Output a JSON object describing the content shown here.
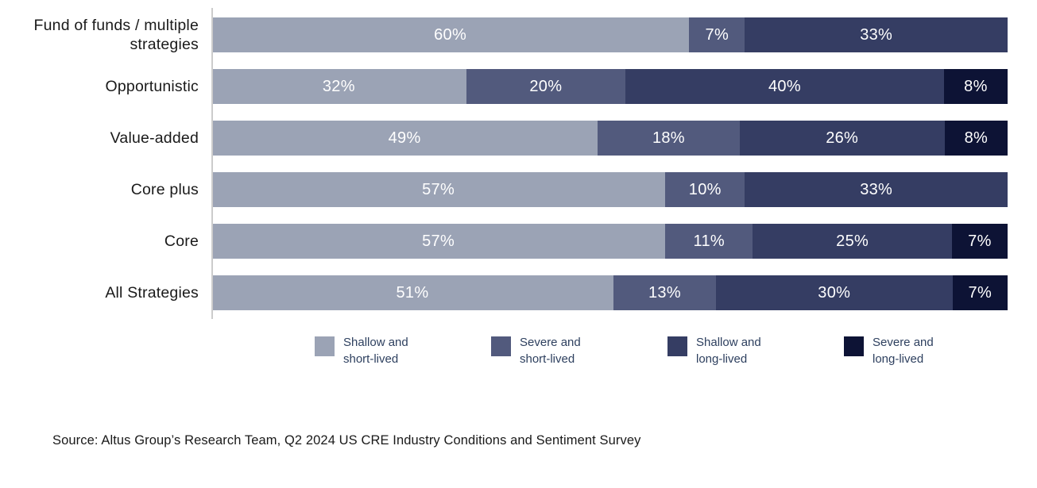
{
  "chart_data": {
    "type": "bar",
    "orientation": "horizontal",
    "stacked": true,
    "value_unit": "%",
    "xlim": [
      0,
      100
    ],
    "grid": false,
    "legend_position": "bottom",
    "categories": [
      "Fund of funds / multiple strategies",
      "Opportunistic",
      "Value-added",
      "Core plus",
      "Core",
      "All Strategies"
    ],
    "series": [
      {
        "name": "Shallow and short-lived",
        "color": "#9BA3B5",
        "values": [
          60,
          32,
          49,
          57,
          57,
          51
        ]
      },
      {
        "name": "Severe and short-lived",
        "color": "#525A7D",
        "values": [
          7,
          20,
          18,
          10,
          11,
          13
        ]
      },
      {
        "name": "Shallow and long-lived",
        "color": "#353D63",
        "values": [
          33,
          40,
          26,
          33,
          25,
          30
        ]
      },
      {
        "name": "Severe and long-lived",
        "color": "#0D1335",
        "values": [
          0,
          8,
          8,
          0,
          7,
          7
        ]
      }
    ],
    "bar_label_format": "{value}%",
    "bar_label_color": "#FFFFFF"
  },
  "legend": {
    "items": [
      {
        "label": "Shallow and short-lived",
        "color": "#9BA3B5"
      },
      {
        "label": "Severe and short-lived",
        "color": "#525A7D"
      },
      {
        "label": "Shallow and long-lived",
        "color": "#353D63"
      },
      {
        "label": "Severe and long-lived",
        "color": "#0D1335"
      }
    ],
    "text_color": "#2E405F"
  },
  "source_note": "Source: Altus Group’s Research Team, Q2 2024 US CRE Industry Conditions and Sentiment Survey",
  "colors": {
    "background": "#FFFFFF",
    "axis_line": "#CCCCCC",
    "category_text": "#1A1A1A"
  }
}
